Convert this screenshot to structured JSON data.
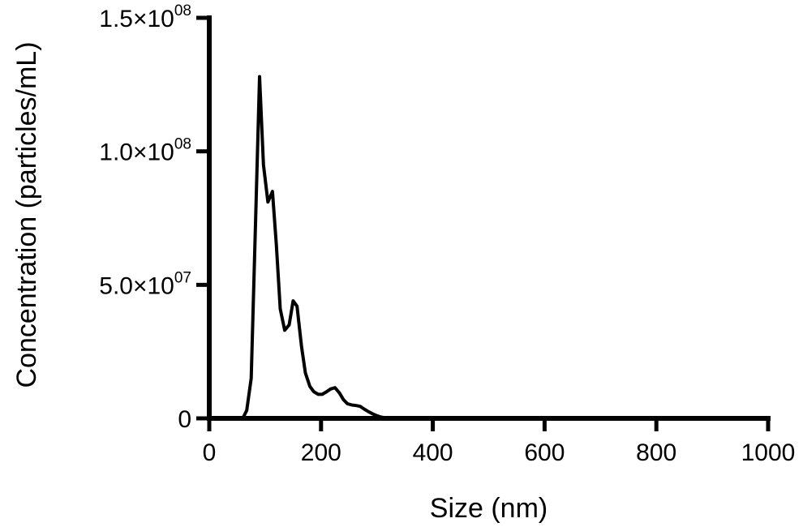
{
  "chart_data": {
    "type": "line",
    "xlabel": "Size (nm)",
    "ylabel": "Concentration (particles/mL)",
    "xlim": [
      0,
      1000
    ],
    "ylim": [
      0,
      150000000
    ],
    "grid": false,
    "x_ticks": [
      0,
      200,
      400,
      600,
      800,
      1000
    ],
    "x_tick_labels": [
      "0",
      "200",
      "400",
      "600",
      "800",
      "1000"
    ],
    "y_ticks": [
      {
        "value": 0,
        "mantissa": "0",
        "exponent": ""
      },
      {
        "value": 50000000,
        "mantissa": "5.0×10",
        "exponent": "07"
      },
      {
        "value": 100000000,
        "mantissa": "1.0×10",
        "exponent": "08"
      },
      {
        "value": 150000000,
        "mantissa": "1.5×10",
        "exponent": "08"
      }
    ],
    "line_color": "#000000",
    "x": [
      60,
      67,
      75,
      83,
      90,
      97,
      105,
      113,
      120,
      127,
      135,
      143,
      150,
      157,
      165,
      172,
      180,
      187,
      195,
      202,
      210,
      217,
      225,
      233,
      240,
      247,
      255,
      263,
      270,
      277,
      285,
      293,
      300,
      307,
      315,
      323,
      330,
      337,
      345,
      353,
      360,
      367,
      375,
      400,
      500,
      600,
      800,
      1000
    ],
    "y": [
      0,
      3000000,
      15000000,
      75000000,
      128000000,
      95000000,
      81000000,
      85000000,
      65000000,
      41000000,
      33000000,
      35000000,
      44000000,
      42000000,
      27000000,
      17000000,
      12000000,
      10000000,
      9000000,
      9000000,
      10000000,
      11000000,
      11500000,
      9500000,
      7000000,
      5500000,
      5000000,
      4800000,
      4500000,
      3500000,
      2500000,
      1600000,
      1000000,
      500000,
      200000,
      80000,
      20000,
      0,
      0,
      0,
      0,
      0,
      0,
      0,
      0,
      0,
      0,
      0
    ]
  }
}
